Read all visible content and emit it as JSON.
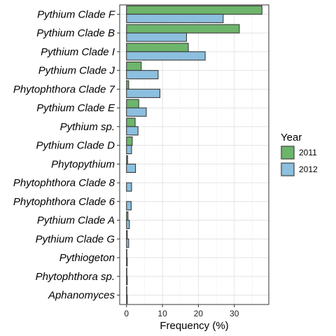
{
  "chart_data": {
    "type": "bar",
    "orientation": "horizontal",
    "categories": [
      "Pythium Clade F",
      "Pythium Clade B",
      "Pythium Clade I",
      "Pythium Clade J",
      "Phytophthora Clade 7",
      "Pythium Clade E",
      "Pythium sp.",
      "Pythium Clade D",
      "Phytopythium",
      "Phytophthora Clade 8",
      "Phytophthora Clade 6",
      "Pythium Clade A",
      "Pythium Clade G",
      "Pythiogeton",
      "Phytophthora sp.",
      "Aphanomyces"
    ],
    "series": [
      {
        "name": "2011",
        "color": "#6db56a",
        "values": [
          37.7,
          31.4,
          17.2,
          4.1,
          0.6,
          3.4,
          2.4,
          1.6,
          0.3,
          0.0,
          0.0,
          0.4,
          0.2,
          0.1,
          0.1,
          0.1
        ]
      },
      {
        "name": "2012",
        "color": "#8dbfdf",
        "values": [
          26.9,
          16.7,
          21.9,
          8.8,
          9.3,
          5.5,
          3.2,
          1.4,
          2.5,
          1.4,
          1.3,
          0.8,
          0.6,
          0.2,
          0.2,
          0.2
        ]
      }
    ],
    "xlabel": "Frequency (%)",
    "ylabel": "",
    "xlim": [
      -1.9,
      39.6
    ],
    "xticks": [
      0,
      10,
      20,
      30
    ],
    "tick_labels": [
      "0",
      "10",
      "20",
      "30"
    ],
    "grid": true,
    "legend": {
      "title": "Year",
      "position": "right",
      "entries": [
        "2011",
        "2012"
      ]
    }
  }
}
